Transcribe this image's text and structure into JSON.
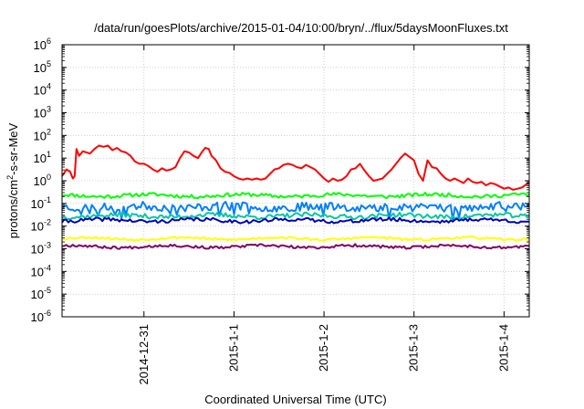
{
  "chart_data": {
    "type": "line",
    "title": "/data/run/goesPlots/archive/2015-01-04/10:00/bryn/../flux/5daysMoonFluxes.txt",
    "xlabel": "Coordinated Universal Time (UTC)",
    "ylabel_parts": {
      "pre": "protons/cm",
      "sup": "2",
      "post": "-s-sr-MeV"
    },
    "y_scale": "log",
    "ylim": [
      1e-06,
      1000000.0
    ],
    "y_ticks": [
      {
        "mantissa": "10",
        "exp": "-6",
        "value": -6
      },
      {
        "mantissa": "10",
        "exp": "-5",
        "value": -5
      },
      {
        "mantissa": "10",
        "exp": "-4",
        "value": -4
      },
      {
        "mantissa": "10",
        "exp": "-3",
        "value": -3
      },
      {
        "mantissa": "10",
        "exp": "-2",
        "value": -2
      },
      {
        "mantissa": "10",
        "exp": "-1",
        "value": -1
      },
      {
        "mantissa": "10",
        "exp": "0",
        "value": 0
      },
      {
        "mantissa": "10",
        "exp": "1",
        "value": 1
      },
      {
        "mantissa": "10",
        "exp": "2",
        "value": 2
      },
      {
        "mantissa": "10",
        "exp": "3",
        "value": 3
      },
      {
        "mantissa": "10",
        "exp": "4",
        "value": 4
      },
      {
        "mantissa": "10",
        "exp": "5",
        "value": 5
      },
      {
        "mantissa": "10",
        "exp": "6",
        "value": 6
      }
    ],
    "x_range_days": [
      -1.91,
      3.28
    ],
    "x_ticks": [
      {
        "label": "2014-12-31",
        "day": -1.0
      },
      {
        "label": "2015-1-1",
        "day": 0.0
      },
      {
        "label": "2015-1-2",
        "day": 1.0
      },
      {
        "label": "2015-1-3",
        "day": 2.0
      },
      {
        "label": "2015-1-4",
        "day": 3.0
      }
    ],
    "grid": true,
    "series": [
      {
        "color": "#ff0000",
        "points": [
          [
            -1.91,
            0.2
          ],
          [
            -1.86,
            0.5
          ],
          [
            -1.82,
            0.4
          ],
          [
            -1.79,
            0.1
          ],
          [
            -1.77,
            0.2
          ],
          [
            -1.75,
            1.4
          ],
          [
            -1.72,
            1.1
          ],
          [
            -1.68,
            1.3
          ],
          [
            -1.6,
            1.2
          ],
          [
            -1.55,
            1.4
          ],
          [
            -1.5,
            1.55
          ],
          [
            -1.45,
            1.5
          ],
          [
            -1.4,
            1.55
          ],
          [
            -1.35,
            1.35
          ],
          [
            -1.3,
            1.45
          ],
          [
            -1.25,
            1.3
          ],
          [
            -1.2,
            1.25
          ],
          [
            -1.15,
            1.1
          ],
          [
            -1.1,
            0.85
          ],
          [
            -1.05,
            0.75
          ],
          [
            -1.0,
            0.75
          ],
          [
            -0.95,
            0.65
          ],
          [
            -0.9,
            0.5
          ],
          [
            -0.85,
            0.4
          ],
          [
            -0.8,
            0.55
          ],
          [
            -0.75,
            0.45
          ],
          [
            -0.7,
            0.5
          ],
          [
            -0.65,
            0.6
          ],
          [
            -0.6,
            1.0
          ],
          [
            -0.55,
            1.3
          ],
          [
            -0.5,
            1.25
          ],
          [
            -0.45,
            1.1
          ],
          [
            -0.4,
            1.0
          ],
          [
            -0.35,
            1.3
          ],
          [
            -0.32,
            1.45
          ],
          [
            -0.28,
            1.4
          ],
          [
            -0.25,
            1.1
          ],
          [
            -0.2,
            0.9
          ],
          [
            -0.15,
            0.55
          ],
          [
            -0.1,
            0.4
          ],
          [
            -0.05,
            0.35
          ],
          [
            0.0,
            0.2
          ],
          [
            0.05,
            0.1
          ],
          [
            0.1,
            0.05
          ],
          [
            0.15,
            0.1
          ],
          [
            0.2,
            0.05
          ],
          [
            0.25,
            0.1
          ],
          [
            0.3,
            0.05
          ],
          [
            0.35,
            0.1
          ],
          [
            0.4,
            0.3
          ],
          [
            0.45,
            0.5
          ],
          [
            0.5,
            0.55
          ],
          [
            0.55,
            0.7
          ],
          [
            0.6,
            0.75
          ],
          [
            0.65,
            0.7
          ],
          [
            0.7,
            0.6
          ],
          [
            0.75,
            0.55
          ],
          [
            0.8,
            0.7
          ],
          [
            0.85,
            0.6
          ],
          [
            0.9,
            0.5
          ],
          [
            0.95,
            0.3
          ],
          [
            1.0,
            0.1
          ],
          [
            1.05,
            -0.05
          ],
          [
            1.1,
            0.1
          ],
          [
            1.15,
            0.0
          ],
          [
            1.2,
            0.05
          ],
          [
            1.25,
            0.2
          ],
          [
            1.3,
            0.5
          ],
          [
            1.35,
            0.55
          ],
          [
            1.4,
            0.75
          ],
          [
            1.45,
            0.45
          ],
          [
            1.5,
            0.2
          ],
          [
            1.55,
            0.0
          ],
          [
            1.6,
            0.05
          ],
          [
            1.65,
            0.1
          ],
          [
            1.7,
            0.3
          ],
          [
            1.75,
            0.5
          ],
          [
            1.8,
            0.75
          ],
          [
            1.85,
            1.0
          ],
          [
            1.9,
            1.2
          ],
          [
            1.95,
            1.05
          ],
          [
            2.0,
            0.9
          ],
          [
            2.05,
            0.3
          ],
          [
            2.1,
            0.0
          ],
          [
            2.15,
            0.9
          ],
          [
            2.2,
            0.6
          ],
          [
            2.25,
            0.55
          ],
          [
            2.3,
            0.3
          ],
          [
            2.35,
            0.1
          ],
          [
            2.4,
            0.0
          ],
          [
            2.45,
            0.1
          ],
          [
            2.5,
            0.0
          ],
          [
            2.55,
            -0.1
          ],
          [
            2.6,
            0.1
          ],
          [
            2.65,
            -0.05
          ],
          [
            2.7,
            -0.1
          ],
          [
            2.75,
            -0.05
          ],
          [
            2.8,
            -0.2
          ],
          [
            2.85,
            -0.1
          ],
          [
            2.9,
            -0.15
          ],
          [
            2.95,
            -0.25
          ],
          [
            3.0,
            -0.35
          ],
          [
            3.05,
            -0.3
          ],
          [
            3.1,
            -0.4
          ],
          [
            3.15,
            -0.35
          ],
          [
            3.2,
            -0.3
          ],
          [
            3.25,
            -0.15
          ],
          [
            3.28,
            -0.1
          ]
        ]
      },
      {
        "color": "#00ff00",
        "base": -0.65,
        "noise": 0.08,
        "seed": 11
      },
      {
        "color": "#0080ff",
        "base": -1.15,
        "noise": 0.18,
        "seed": 23
      },
      {
        "color": "#00c8a0",
        "base": -1.55,
        "noise": 0.1,
        "seed": 37
      },
      {
        "color": "#0000c0",
        "base": -1.75,
        "noise": 0.08,
        "seed": 41
      },
      {
        "color": "#ffff00",
        "base": -2.55,
        "noise": 0.05,
        "seed": 53
      },
      {
        "color": "#800060",
        "base": -2.9,
        "noise": 0.06,
        "seed": 67
      }
    ]
  }
}
